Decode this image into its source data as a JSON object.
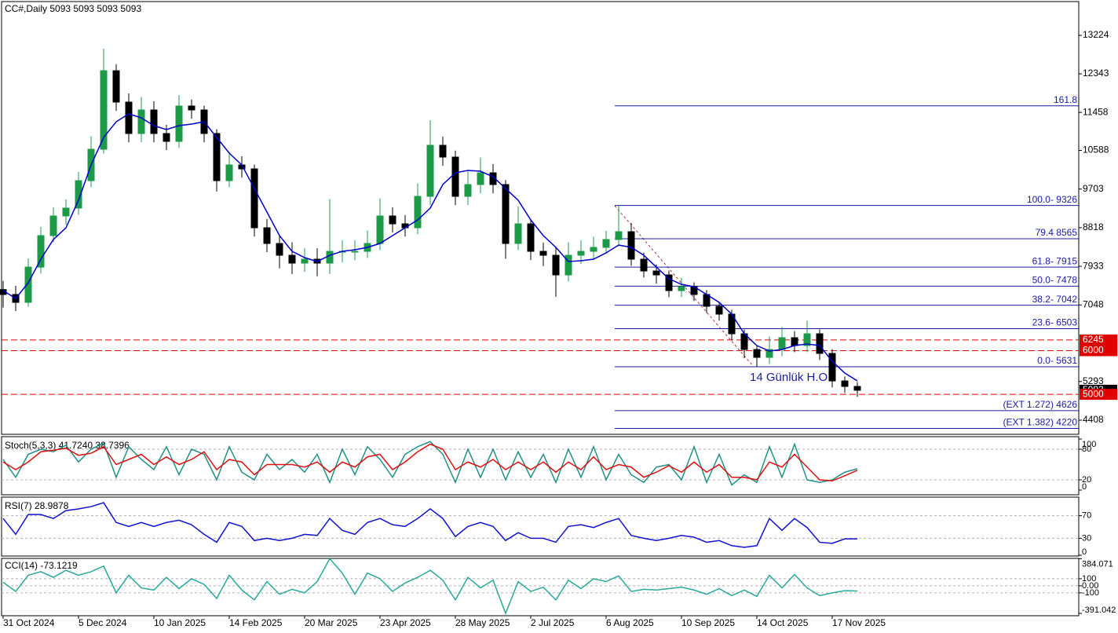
{
  "chart_data": [
    {
      "type": "candlestick",
      "title": "CC#,Daily  5093 5093 5093 5093",
      "annotation": "14 Günlük H.O",
      "categories": [
        "31 Oct 2024",
        null,
        null,
        null,
        null,
        null,
        "5 Dec 2024",
        null,
        null,
        null,
        null,
        null,
        "10 Jan 2025",
        null,
        null,
        null,
        null,
        null,
        "14 Feb 2025",
        null,
        null,
        null,
        null,
        null,
        "20 Mar 2025",
        null,
        null,
        null,
        null,
        null,
        "23 Apr 2025",
        null,
        null,
        null,
        null,
        null,
        "28 May 2025",
        null,
        null,
        null,
        null,
        null,
        "2 Jul 2025",
        null,
        null,
        null,
        null,
        null,
        "6 Aug 2025",
        null,
        null,
        null,
        null,
        null,
        "10 Sep 2025",
        null,
        null,
        null,
        null,
        null,
        "14 Oct 2025",
        null,
        null,
        null,
        null,
        null,
        "17 Nov 2025",
        null,
        null
      ],
      "open": [
        7400,
        7287,
        7107,
        7915,
        8636,
        9086,
        9266,
        9895,
        10615,
        12414,
        11695,
        10975,
        11515,
        10975,
        10795,
        11605,
        11515,
        10975,
        9895,
        10255,
        10165,
        8816,
        8456,
        8186,
        8006,
        8096,
        8006,
        8276,
        8276,
        8276,
        8456,
        9086,
        8906,
        8816,
        9536,
        10705,
        10435,
        9536,
        9806,
        10075,
        9806,
        8456,
        8906,
        8276,
        8186,
        7736,
        8186,
        8276,
        8366,
        8546,
        8726,
        8096,
        7826,
        7736,
        7376,
        7466,
        7287,
        7017,
        6837,
        6387,
        6027,
        5847,
        6027,
        6297,
        6117,
        6387,
        5937,
        5307,
        5181
      ],
      "high": [
        7600,
        7487,
        8115,
        8836,
        9286,
        9466,
        10095,
        10915,
        12918,
        12564,
        11895,
        11815,
        11715,
        11175,
        11855,
        11755,
        11615,
        11075,
        10555,
        10455,
        10265,
        9016,
        8656,
        8486,
        8346,
        8346,
        9476,
        8526,
        8526,
        8756,
        9486,
        9286,
        9106,
        9836,
        11281,
        10905,
        10585,
        10106,
        10425,
        10275,
        9906,
        9306,
        9006,
        8476,
        8386,
        8486,
        8526,
        8616,
        8746,
        9326,
        8926,
        8246,
        7976,
        7836,
        7666,
        7566,
        7387,
        7117,
        6937,
        6487,
        6127,
        6327,
        6547,
        6447,
        6687,
        6487,
        6037,
        5407,
        5281
      ],
      "low": [
        6987,
        6907,
        7007,
        7765,
        8486,
        8886,
        9116,
        9745,
        10515,
        11495,
        10775,
        10775,
        10775,
        10595,
        10645,
        11315,
        10775,
        9645,
        9745,
        9965,
        8616,
        8256,
        7886,
        7756,
        7806,
        7706,
        7756,
        8026,
        8076,
        8126,
        8306,
        8706,
        8616,
        8666,
        9336,
        10235,
        9336,
        9336,
        9606,
        9606,
        8106,
        8306,
        8076,
        7936,
        7236,
        7586,
        7986,
        8076,
        8216,
        8396,
        7946,
        7676,
        7536,
        7226,
        7226,
        7137,
        6867,
        6687,
        6237,
        5827,
        5631,
        5697,
        5877,
        5967,
        5967,
        5787,
        5157,
        5031,
        4943
      ],
      "close": [
        7287,
        7107,
        7915,
        8636,
        9086,
        9266,
        9895,
        10615,
        12414,
        11695,
        10975,
        11515,
        10975,
        10795,
        11605,
        11515,
        10975,
        9895,
        10255,
        10165,
        8816,
        8456,
        8186,
        8006,
        8096,
        8006,
        8276,
        8276,
        8276,
        8456,
        9086,
        8906,
        8816,
        9536,
        10705,
        10435,
        9536,
        9806,
        10075,
        9806,
        8456,
        8906,
        8276,
        8186,
        7736,
        8186,
        8276,
        8366,
        8546,
        8726,
        8096,
        7826,
        7736,
        7376,
        7466,
        7287,
        7017,
        6837,
        6387,
        6027,
        5847,
        6027,
        6297,
        6117,
        6387,
        5937,
        5307,
        5181,
        5093
      ],
      "up_color": "#1c9a48",
      "down_color": "#000000",
      "series": [
        {
          "color": "#0000cc",
          "values": [
            7376,
            7197,
            7556,
            8096,
            8546,
            8816,
            9446,
            10255,
            10885,
            11245,
            11425,
            11335,
            11155,
            11065,
            11155,
            11191,
            11245,
            10885,
            10525,
            10255,
            9715,
            9176,
            8636,
            8276,
            8132,
            8042,
            8186,
            8276,
            8312,
            8366,
            8456,
            8636,
            8816,
            8996,
            9266,
            9806,
            10075,
            10129,
            10111,
            9985,
            9715,
            9446,
            8996,
            8636,
            8366,
            8042,
            8060,
            8096,
            8240,
            8420,
            8366,
            8186,
            7915,
            7646,
            7520,
            7466,
            7287,
            7107,
            6837,
            6387,
            6117,
            5991,
            6027,
            6117,
            6153,
            6117,
            5757,
            5487,
            5307
          ]
        }
      ],
      "fib_color": "#1a1aa0",
      "fib_levels": [
        {
          "value": 11609,
          "label": "161.8"
        },
        {
          "value": 9326,
          "label": "100.0- 9326"
        },
        {
          "value": 8565,
          "label": "79.4 8565"
        },
        {
          "value": 7915,
          "label": "61.8- 7915"
        },
        {
          "value": 7478,
          "label": "50.0- 7478"
        },
        {
          "value": 7042,
          "label": "38.2- 7042"
        },
        {
          "value": 6503,
          "label": "23.6- 6503"
        },
        {
          "value": 5631,
          "label": "0.0- 5631"
        },
        {
          "value": 4626,
          "label": "(EXT 1.272)   4626"
        },
        {
          "value": 4220,
          "label": "(EXT 1.382)   4220"
        }
      ],
      "hlines": [
        6245,
        6000,
        5000
      ],
      "hline_color": "#e00000",
      "last_price": 5093,
      "ylim": [
        4084,
        13998
      ],
      "yticks": [
        13224,
        12343,
        11458,
        10588,
        9703,
        8818,
        7933,
        7048,
        5293,
        4408
      ]
    },
    {
      "type": "line",
      "title": "Stoch(5,3,3) 41.7240 38.7396",
      "grid": true,
      "series": [
        {
          "color": "#1f8f88",
          "values": [
            60,
            25,
            70,
            80,
            75,
            88,
            55,
            80,
            92,
            25,
            85,
            60,
            40,
            85,
            30,
            80,
            70,
            20,
            85,
            35,
            20,
            70,
            40,
            60,
            35,
            70,
            15,
            80,
            30,
            85,
            60,
            25,
            70,
            85,
            95,
            70,
            15,
            80,
            25,
            80,
            20,
            75,
            25,
            70,
            15,
            80,
            25,
            85,
            20,
            70,
            30,
            15,
            45,
            50,
            20,
            85,
            15,
            70,
            10,
            30,
            15,
            85,
            25,
            90,
            20,
            15,
            20,
            35,
            41.724
          ]
        },
        {
          "color": "#e01010",
          "values": [
            55,
            40,
            55,
            75,
            78,
            82,
            68,
            72,
            85,
            50,
            60,
            70,
            50,
            65,
            50,
            60,
            75,
            40,
            60,
            55,
            30,
            50,
            50,
            50,
            45,
            55,
            35,
            55,
            45,
            65,
            70,
            40,
            55,
            75,
            90,
            80,
            40,
            55,
            45,
            60,
            40,
            55,
            40,
            55,
            35,
            55,
            40,
            65,
            40,
            50,
            45,
            25,
            35,
            48,
            35,
            55,
            35,
            50,
            25,
            25,
            20,
            55,
            45,
            70,
            45,
            20,
            18,
            28,
            38.7396
          ]
        }
      ],
      "ylim": [
        0,
        100
      ],
      "yticks": [
        100,
        80,
        20,
        0
      ]
    },
    {
      "type": "line",
      "title": "RSI(7) 28.9878",
      "grid": true,
      "series": [
        {
          "color": "#1010d0",
          "values": [
            65,
            37,
            72,
            72,
            65,
            79,
            82,
            86,
            93,
            58,
            51,
            58,
            51,
            58,
            62,
            54,
            37,
            23,
            58,
            51,
            26,
            30,
            26,
            30,
            37,
            35,
            65,
            44,
            37,
            58,
            65,
            54,
            51,
            65,
            82,
            65,
            33,
            51,
            58,
            51,
            26,
            40,
            30,
            30,
            23,
            51,
            54,
            49,
            58,
            65,
            35,
            30,
            26,
            30,
            35,
            32,
            23,
            26,
            17,
            14,
            17,
            65,
            44,
            65,
            49,
            23,
            21,
            29,
            28.9878
          ]
        }
      ],
      "ylim": [
        0,
        100
      ],
      "yticks": [
        70,
        30,
        0
      ]
    },
    {
      "type": "line",
      "title": "CCI(14) -73.1219",
      "grid": true,
      "series": [
        {
          "color": "#2aa89a",
          "values": [
            50,
            -80,
            150,
            200,
            120,
            220,
            150,
            200,
            280,
            -100,
            150,
            -30,
            -60,
            120,
            -40,
            100,
            20,
            -180,
            150,
            -60,
            -200,
            60,
            -120,
            -50,
            -100,
            60,
            384.071,
            180,
            -120,
            180,
            100,
            -80,
            40,
            120,
            220,
            80,
            -200,
            120,
            -30,
            80,
            -391.042,
            60,
            -80,
            -20,
            -200,
            80,
            -40,
            100,
            60,
            140,
            -80,
            -50,
            -60,
            -40,
            -20,
            -60,
            -120,
            -40,
            -140,
            -60,
            -150,
            150,
            -30,
            160,
            -30,
            -140,
            -100,
            -70,
            -73.1219
          ]
        }
      ],
      "ylim": [
        -391.042,
        384.071
      ],
      "yticks": [
        384.071,
        100,
        {
          "value": 0,
          "label": "0.00"
        },
        -100,
        -391.042
      ]
    }
  ]
}
